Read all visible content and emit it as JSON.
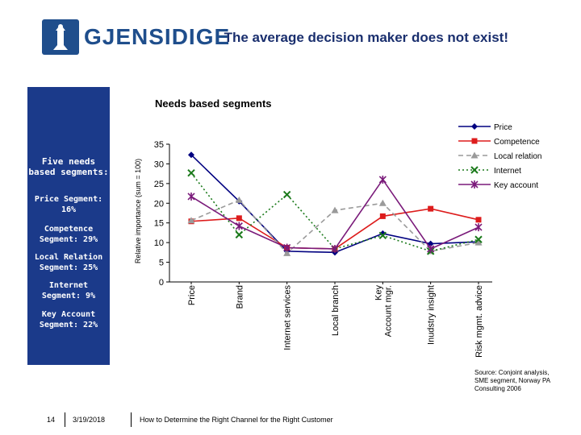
{
  "brand": {
    "name": "GJENSIDIGE"
  },
  "slide_title": "The average decision maker does not exist!",
  "chart_subtitle": "Needs based segments",
  "sidebar": {
    "heading": "Five needs based segments:",
    "segments": [
      "Price Segment: 16%",
      "Competence Segment: 29%",
      "Local Relation Segment: 25%",
      "Internet Segment: 9%",
      "Key Account Segment: 22%"
    ]
  },
  "chart_data": {
    "type": "line",
    "ylabel": "Relative importance (sum = 100)",
    "ylim": [
      0,
      35
    ],
    "yticks": [
      0,
      5,
      10,
      15,
      20,
      25,
      30,
      35
    ],
    "categories": [
      "Price",
      "Brand",
      "Internet services",
      "Local branch",
      "Key Account mgr.",
      "Inudstry insight",
      "Risk mgmt. advice"
    ],
    "legend_position": "top-right",
    "series": [
      {
        "name": "Price",
        "color": "#000080",
        "dash": "solid",
        "marker": "diamond",
        "values": [
          32.3,
          20.5,
          7.8,
          7.5,
          12.3,
          9.7,
          10.2
        ]
      },
      {
        "name": "Competence",
        "color": "#dd1c1c",
        "dash": "solid",
        "marker": "square",
        "values": [
          15.4,
          16.2,
          8.7,
          8.4,
          16.7,
          18.6,
          15.8
        ]
      },
      {
        "name": "Local relation",
        "color": "#9a9a9a",
        "dash": "dashed",
        "marker": "triangle",
        "values": [
          15.6,
          20.8,
          7.3,
          18.2,
          20.0,
          7.8,
          10.0
        ]
      },
      {
        "name": "Internet",
        "color": "#1b7a1b",
        "dash": "dotted",
        "marker": "x",
        "values": [
          27.7,
          12.0,
          22.2,
          8.4,
          11.8,
          7.8,
          10.8
        ]
      },
      {
        "name": "Key account",
        "color": "#7a1a7a",
        "dash": "solid",
        "marker": "star",
        "values": [
          21.7,
          14.2,
          8.7,
          8.4,
          26.0,
          8.4,
          13.9
        ]
      }
    ]
  },
  "source_note": "Source: Conjoint analysis, SME segment, Norway PA Consulting 2006",
  "footer": {
    "page_number": "14",
    "date": "3/19/2018",
    "text": "How to Determine the Right Channel for the Right Customer"
  },
  "colors": {
    "sidebar_bg": "#1b3a8a",
    "title": "#1a2f6e",
    "brand": "#1f4e8c"
  }
}
